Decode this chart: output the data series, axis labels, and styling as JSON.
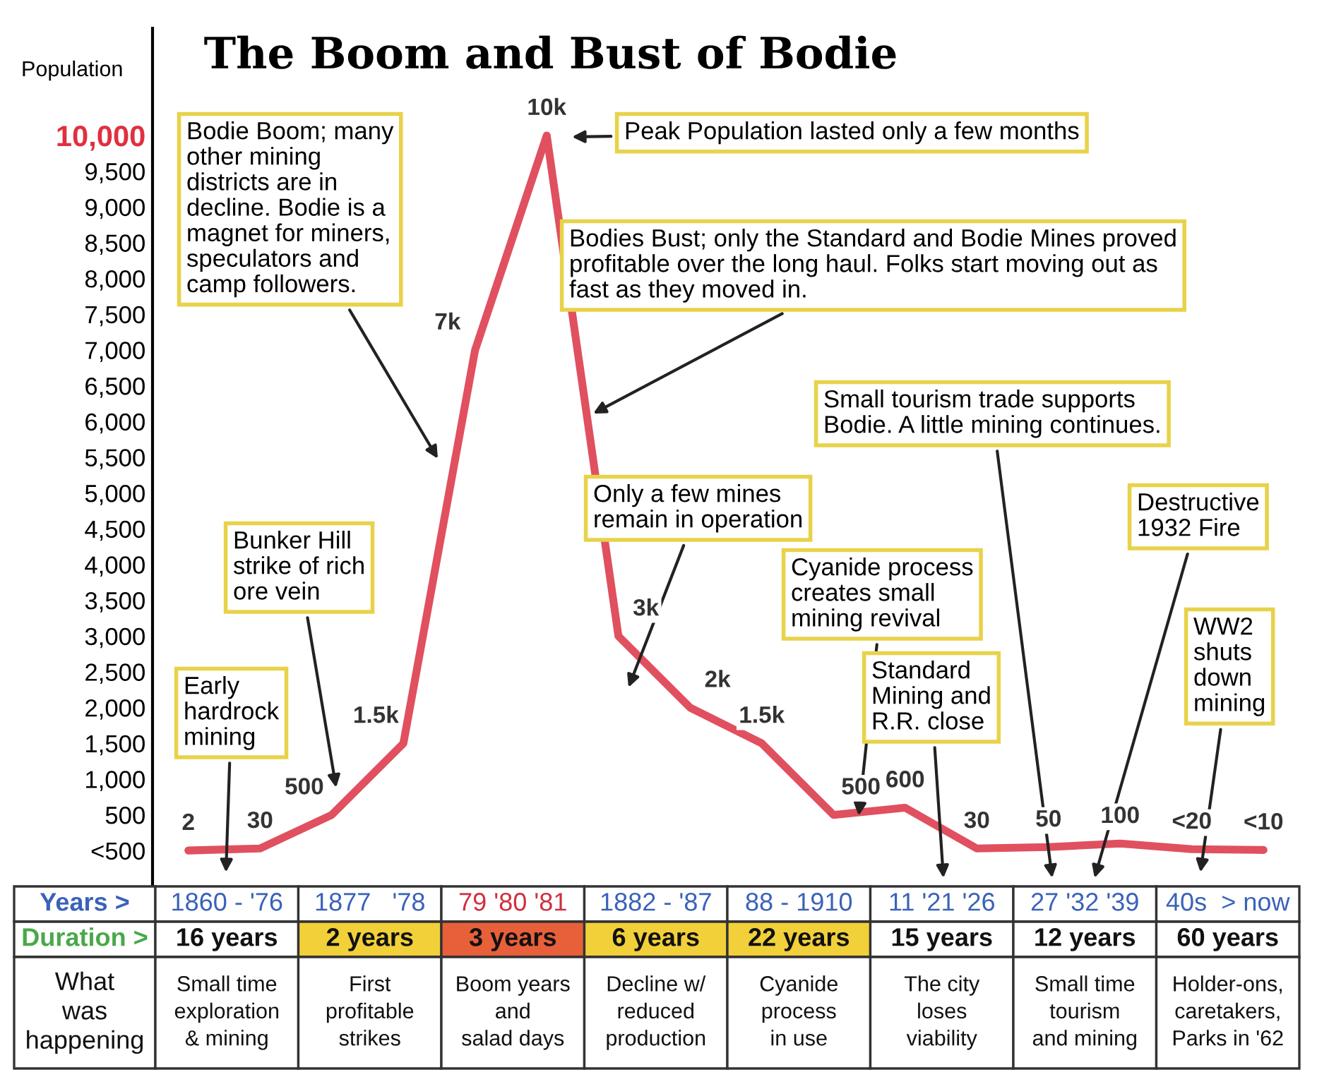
{
  "chart_data": {
    "type": "line",
    "title": "The Boom and Bust of Bodie",
    "ylabel": "Population",
    "categories": [
      null,
      null,
      null,
      null,
      null,
      null,
      null,
      null,
      null,
      null,
      null,
      null,
      null,
      null,
      null,
      null
    ],
    "series": [
      {
        "color": "#e0505f",
        "values": [
          2,
          30,
          500,
          1500,
          7000,
          10000,
          3000,
          2000,
          1500,
          500,
          600,
          30,
          50,
          100,
          20,
          10
        ],
        "value_labels": [
          "2",
          "30",
          "500",
          "1.5k",
          "7k",
          "10k",
          "3k",
          "2k",
          "1.5k",
          "500",
          "600",
          "30",
          "50",
          "100",
          "<20",
          "<10"
        ]
      }
    ],
    "ylim": [
      -500,
      11500
    ],
    "yticks": [
      {
        "value": 0,
        "label": "<500"
      },
      500,
      {
        "value": 1000,
        "label": "1,000"
      },
      {
        "value": 1500,
        "label": "1,500"
      },
      {
        "value": 2000,
        "label": "2,000"
      },
      {
        "value": 2500,
        "label": "2,500"
      },
      {
        "value": 3000,
        "label": "3,000"
      },
      {
        "value": 3500,
        "label": "3,500"
      },
      {
        "value": 4000,
        "label": "4,000"
      },
      {
        "value": 4500,
        "label": "4,500"
      },
      {
        "value": 5000,
        "label": "5,000"
      },
      {
        "value": 5500,
        "label": "5,500"
      },
      {
        "value": 6000,
        "label": "6,000"
      },
      {
        "value": 6500,
        "label": "6,500"
      },
      {
        "value": 7000,
        "label": "7,000"
      },
      {
        "value": 7500,
        "label": "7,500"
      },
      {
        "value": 8000,
        "label": "8,000"
      },
      {
        "value": 8500,
        "label": "8,500"
      },
      {
        "value": 9000,
        "label": "9,000"
      },
      {
        "value": 9500,
        "label": "9,500"
      },
      {
        "value": 10000,
        "label": "10,000"
      }
    ],
    "grid": false,
    "legend": false,
    "marker": "none",
    "line_style": "solid",
    "annotations": [
      "Bodie Boom; many\nother mining\ndistricts are in\ndecline. Bodie is a\nmagnet for miners,\nspeculators and\ncamp followers.",
      "Peak Population lasted only a few months",
      "Bodies Bust; only the Standard and Bodie Mines proved\nprofitable over the long haul. Folks start moving out as\nfast as they moved in.",
      "Small tourism trade supports\nBodie. A little mining continues.",
      "Only a few mines\nremain in operation",
      "Destructive\n1932 Fire",
      "Bunker Hill\nstrike of rich\nore vein",
      "Cyanide process\ncreates small\nmining revival",
      "WW2\nshuts\ndown\nmining",
      "Early\nhardrock\nmining",
      "Standard\nMining and\nR.R. close",
      "Years >",
      "Duration >",
      "What\nwas\nhappening",
      "1860 - '76",
      "1877   '78",
      "79 '80 '81",
      "1882 - '87",
      "88 - 1910",
      "11 '21 '26",
      "27 '32 '39",
      "40s  > now",
      "16 years",
      "2 years",
      "3 years",
      "6 years",
      "22 years",
      "15 years",
      "12 years",
      "60 years",
      "Small time\nexploration\n& mining",
      "First\nprofitable\nstrikes",
      "Boom years\nand\nsalad days",
      "Decline w/\nreduced\nproduction",
      "Cyanide\nprocess\nin use",
      "The city\nloses\nviability",
      "Small time\ntourism\nand mining",
      "Holder-ons,\ncaretakers,\nParks in '62"
    ]
  }
}
